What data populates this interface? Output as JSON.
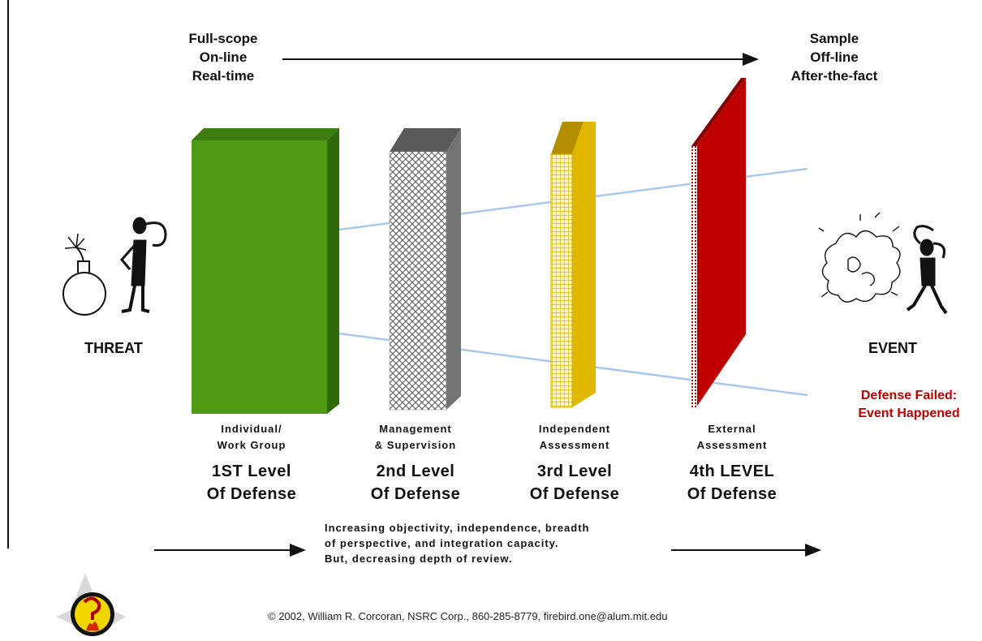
{
  "header": {
    "left": [
      "Full-scope",
      "On-line",
      "Real-time"
    ],
    "right": [
      "Sample",
      "Off-line",
      "After-the-fact"
    ]
  },
  "threat_label": "THREAT",
  "event_label": "EVENT",
  "failure_note": [
    "Defense Failed:",
    "Event Happened"
  ],
  "levels": [
    {
      "sub": [
        "Individual/",
        "Work Group"
      ],
      "title": [
        "1ST Level",
        "Of Defense"
      ],
      "color": "#4e9a14"
    },
    {
      "sub": [
        "Management",
        "& Supervision"
      ],
      "title": [
        "2nd Level",
        "Of Defense"
      ],
      "color": "#bfbfbf"
    },
    {
      "sub": [
        "Independent",
        "Assessment"
      ],
      "title": [
        "3rd Level",
        "Of Defense"
      ],
      "color": "#e8c21a"
    },
    {
      "sub": [
        "External",
        "Assessment"
      ],
      "title": [
        "4th LEVEL",
        "Of Defense"
      ],
      "color": "#c00000"
    }
  ],
  "bottom_note": [
    "Increasing objectivity, independence, breadth",
    "of perspective, and integration capacity.",
    "But, decreasing depth of review."
  ],
  "copyright": "© 2002, William R. Corcoran, NSRC Corp., 860-285-8779, firebird.one@alum.mit.edu",
  "icons": {
    "bomb": "bomb-icon",
    "threat_person": "thinking-person-icon",
    "explosion": "explosion-icon",
    "event_person": "distressed-person-icon",
    "logo": "firebird-logo"
  }
}
